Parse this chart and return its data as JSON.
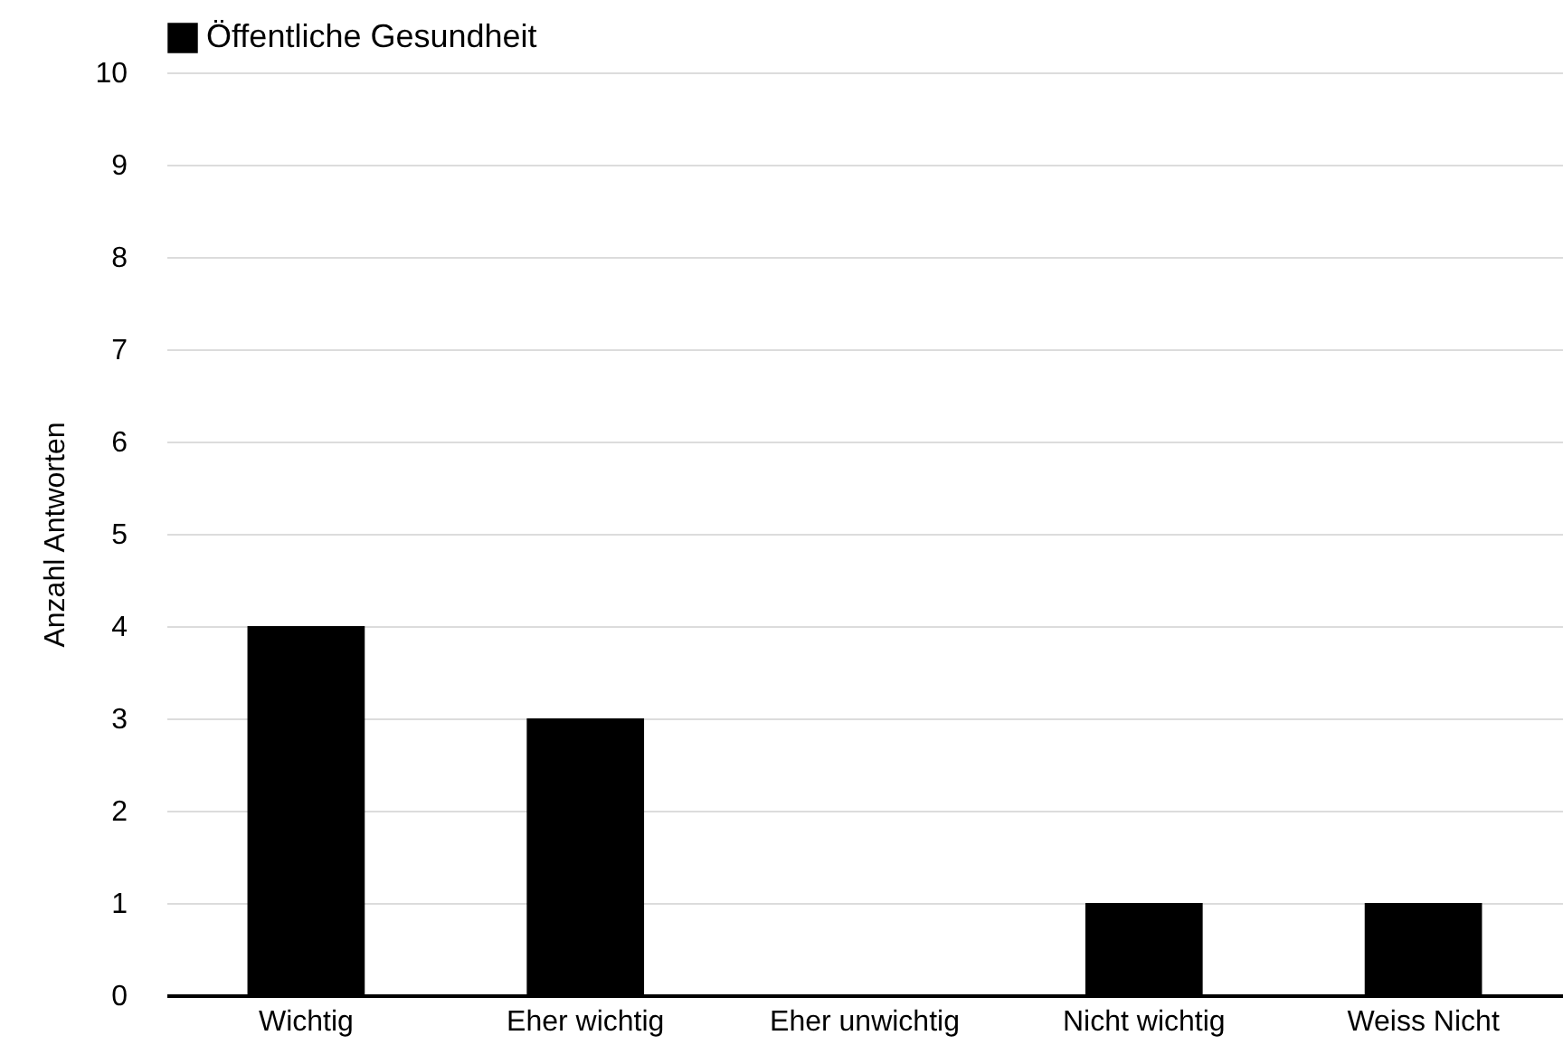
{
  "chart_data": {
    "type": "bar",
    "ylabel": "Anzahl Antworten",
    "categories": [
      "Wichtig",
      "Eher wichtig",
      "Eher unwichtig",
      "Nicht wichtig",
      "Weiss Nicht"
    ],
    "series": [
      {
        "name": "Öffentliche Gesundheit",
        "color": "#000000",
        "values": [
          4,
          3,
          0,
          1,
          1
        ]
      }
    ],
    "ylim": [
      0,
      10
    ],
    "yticks": [
      0,
      1,
      2,
      3,
      4,
      5,
      6,
      7,
      8,
      9,
      10
    ],
    "grid": "y",
    "legend": "top"
  }
}
